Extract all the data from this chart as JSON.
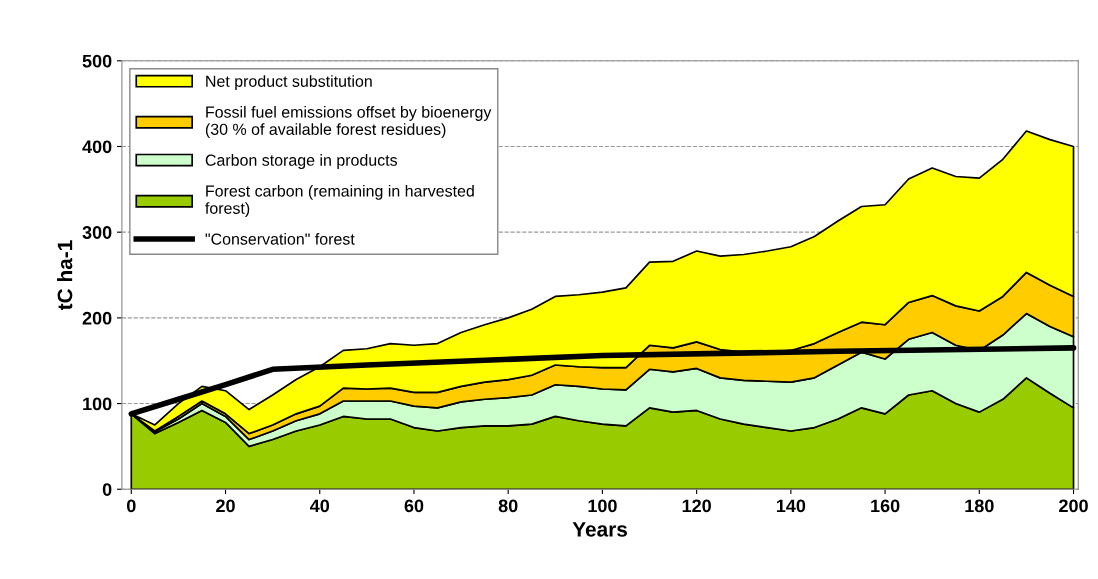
{
  "chart_data": {
    "type": "area",
    "stacked": true,
    "xlabel": "Years",
    "ylabel": "tC ha-1",
    "x": [
      0,
      5,
      10,
      15,
      20,
      25,
      30,
      35,
      40,
      45,
      50,
      55,
      60,
      65,
      70,
      75,
      80,
      85,
      90,
      95,
      100,
      105,
      110,
      115,
      120,
      125,
      130,
      135,
      140,
      145,
      150,
      155,
      160,
      165,
      170,
      175,
      180,
      185,
      190,
      195,
      200
    ],
    "xlim": [
      -2,
      201
    ],
    "xticks": [
      0,
      20,
      40,
      60,
      80,
      100,
      120,
      140,
      160,
      180,
      200
    ],
    "ylim": [
      0,
      500
    ],
    "yticks": [
      0,
      100,
      200,
      300,
      400,
      500
    ],
    "grid": "y",
    "legend": "top left",
    "series": [
      {
        "name": "Forest carbon (remaining in harvested\nforest)",
        "color": "#99cc00",
        "values": [
          88,
          65,
          78,
          92,
          78,
          50,
          58,
          68,
          75,
          85,
          82,
          82,
          72,
          68,
          72,
          74,
          74,
          76,
          85,
          80,
          76,
          74,
          95,
          90,
          92,
          82,
          76,
          72,
          68,
          72,
          82,
          95,
          88,
          110,
          115,
          100,
          90,
          105,
          130,
          112,
          95
        ]
      },
      {
        "name": "Carbon storage in products",
        "color": "#ccffcc",
        "values": [
          0,
          2,
          4,
          8,
          7,
          8,
          10,
          12,
          13,
          18,
          21,
          21,
          25,
          27,
          30,
          31,
          33,
          34,
          37,
          40,
          41,
          42,
          45,
          47,
          49,
          48,
          51,
          54,
          57,
          58,
          63,
          65,
          64,
          65,
          68,
          68,
          72,
          75,
          75,
          78,
          83
        ]
      },
      {
        "name": "Fossil fuel emissions offset by bioenergy\n(30 % of available forest residues)",
        "color": "#ffcc00",
        "values": [
          0,
          1,
          3,
          3,
          3,
          7,
          7,
          8,
          9,
          15,
          14,
          15,
          16,
          18,
          18,
          20,
          21,
          23,
          23,
          23,
          25,
          26,
          28,
          28,
          31,
          33,
          33,
          34,
          37,
          40,
          38,
          35,
          40,
          43,
          43,
          46,
          46,
          45,
          48,
          48,
          47
        ]
      },
      {
        "name": "Net product substitution",
        "color": "#ffff00",
        "values": [
          0,
          7,
          15,
          17,
          27,
          28,
          35,
          40,
          46,
          44,
          47,
          52,
          55,
          57,
          63,
          67,
          72,
          77,
          80,
          84,
          88,
          93,
          97,
          101,
          106,
          109,
          114,
          118,
          121,
          125,
          130,
          135,
          140,
          144,
          149,
          151,
          155,
          160,
          165,
          170,
          175
        ]
      },
      {
        "name": "\"Conservation\" forest",
        "type": "line",
        "color": "#000000",
        "x": [
          0,
          10,
          20,
          30,
          50,
          100,
          150,
          200
        ],
        "values": [
          88,
          105,
          122,
          140,
          145,
          156,
          161,
          165
        ]
      }
    ]
  }
}
